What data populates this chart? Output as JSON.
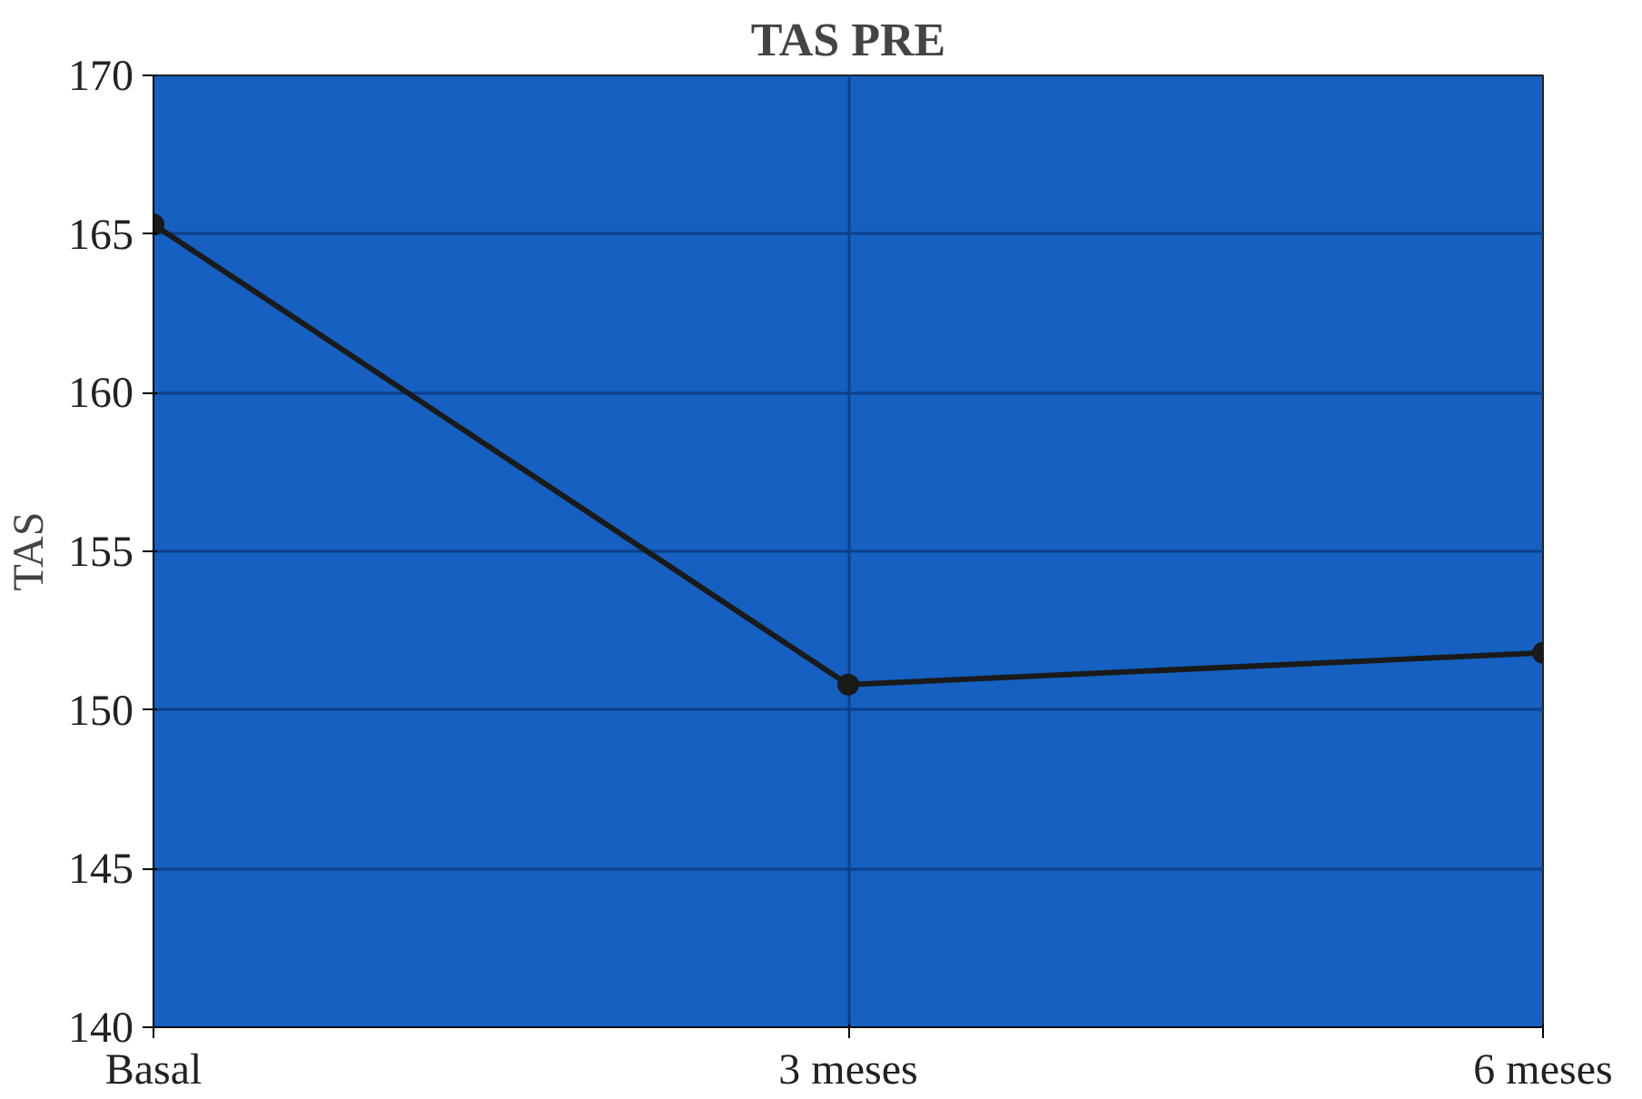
{
  "chart_data": {
    "type": "line",
    "title": "TAS PRE",
    "ylabel": "TAS",
    "categories": [
      "Basal",
      "3 meses",
      "6 meses"
    ],
    "series": [
      {
        "color": "#1a1a1a",
        "values": [
          165.3,
          150.8,
          151.8
        ]
      }
    ],
    "ylim": [
      140,
      170
    ],
    "yticks": [
      140,
      145,
      150,
      155,
      160,
      165,
      170
    ],
    "grid": true,
    "marker": "circle",
    "line_style": "solid"
  }
}
